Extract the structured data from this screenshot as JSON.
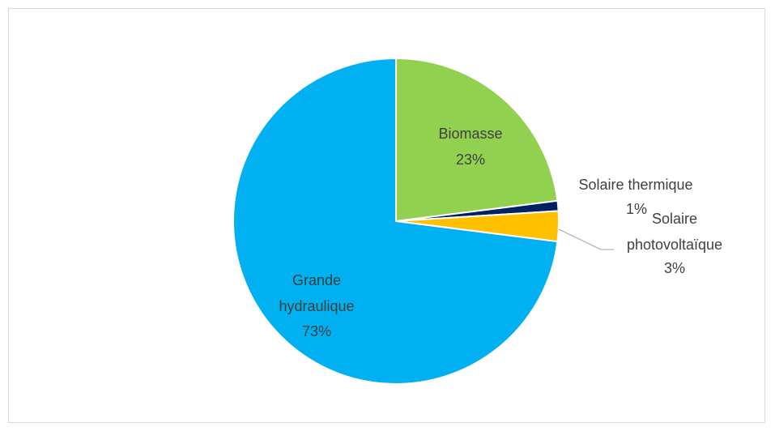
{
  "chart_data": {
    "type": "pie",
    "title": "",
    "legend": "none",
    "slices": [
      {
        "label": "Biomasse",
        "value": 23,
        "value_label": "23%",
        "color": "#92d050"
      },
      {
        "label": "Solaire thermique",
        "value": 1,
        "value_label": "1%",
        "color": "#002060"
      },
      {
        "label": "Solaire photovoltaïque",
        "value": 3,
        "value_label": "3%",
        "color": "#ffc000"
      },
      {
        "label": "Grande hydraulique",
        "value": 73,
        "value_label": "73%",
        "color": "#00b0f0"
      }
    ],
    "text": {
      "biomasse_name": "Biomasse",
      "biomasse_pct": "23%",
      "thermique_name": "Solaire thermique",
      "thermique_pct": "1%",
      "pv_name_1": "Solaire",
      "pv_name_2": "photovoltaïque",
      "pv_pct": "3%",
      "hydro_name_1": "Grande",
      "hydro_name_2": "hydraulique",
      "hydro_pct": "73%"
    }
  }
}
